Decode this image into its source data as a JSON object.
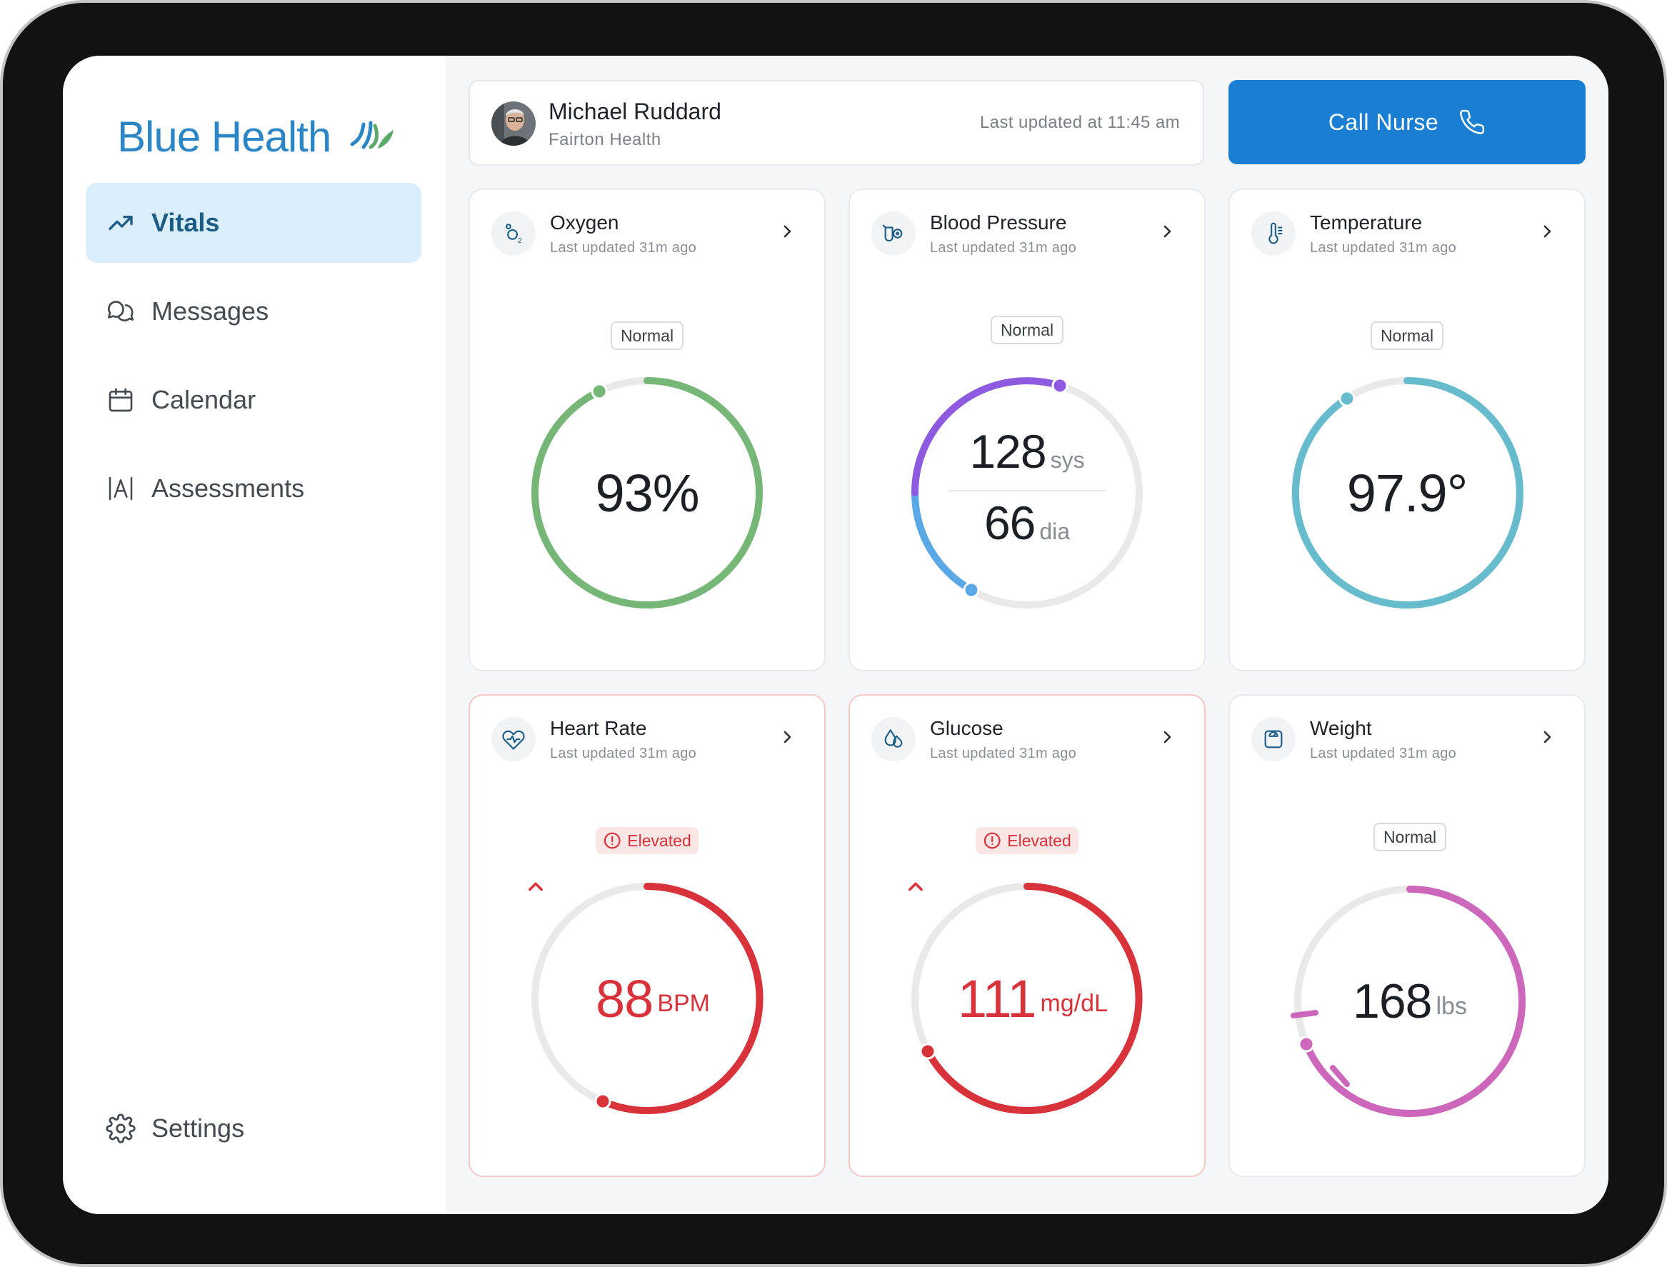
{
  "app": {
    "brand_name": "Blue Health",
    "brand_color": "#2c86c6"
  },
  "sidebar": {
    "items": [
      {
        "label": "Vitals",
        "icon": "trending-up-icon",
        "active": true
      },
      {
        "label": "Messages",
        "icon": "chat-bubbles-icon",
        "active": false
      },
      {
        "label": "Calendar",
        "icon": "calendar-icon",
        "active": false
      },
      {
        "label": "Assessments",
        "icon": "assessment-icon",
        "active": false
      }
    ],
    "settings_label": "Settings"
  },
  "patient": {
    "name": "Michael Ruddard",
    "organization": "Fairton Health",
    "last_updated": "Last updated at 11:45 am"
  },
  "call_nurse": {
    "label": "Call Nurse",
    "color": "#1a7fd2"
  },
  "vitals": {
    "oxygen": {
      "title": "Oxygen",
      "updated": "Last updated 31m ago",
      "status": "Normal",
      "value": "93%",
      "progress": 0.93,
      "color": "#76b777"
    },
    "bp": {
      "title": "Blood Pressure",
      "updated": "Last updated 31m ago",
      "status": "Normal",
      "systolic": "128",
      "systolic_unit": "sys",
      "diastolic": "66",
      "diastolic_unit": "dia",
      "colors": [
        "#8e5be0",
        "#5aa8e6"
      ]
    },
    "temperature": {
      "title": "Temperature",
      "updated": "Last updated 31m ago",
      "status": "Normal",
      "value": "97.9°",
      "color": "#66bccd"
    },
    "heart_rate": {
      "title": "Heart Rate",
      "updated": "Last updated 31m ago",
      "status": "Elevated",
      "value": "88",
      "unit": "BPM",
      "color": "#d8323b"
    },
    "glucose": {
      "title": "Glucose",
      "updated": "Last updated 31m ago",
      "status": "Elevated",
      "value": "111",
      "unit": "mg/dL",
      "color": "#d8323b"
    },
    "weight": {
      "title": "Weight",
      "updated": "Last updated 31m ago",
      "status": "Normal",
      "value": "168",
      "unit": "lbs",
      "color": "#cd67bb"
    }
  }
}
